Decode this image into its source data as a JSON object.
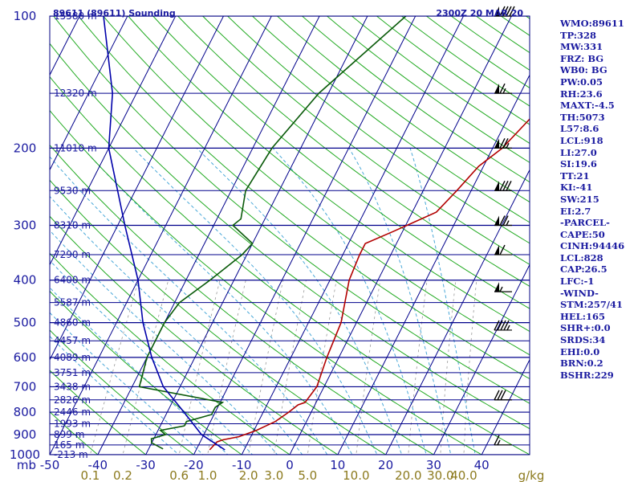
{
  "title_left": "89611 (89611) Sounding",
  "title_right": "2300Z 20 MAR 20",
  "colors": {
    "frame": "#000080",
    "isobar": "#00008b",
    "isotherm": "#00008b",
    "dry_adiabat": "#22aa22",
    "moist_adiabat": "#4aa8d8",
    "mixing_ratio": "#999999",
    "temperature": "#b20000",
    "dewpoint": "#0a5a0a",
    "parcel": "#0000aa",
    "wind": "#000000"
  },
  "stats": [
    "WMO:89611",
    "TP:328",
    "MW:331",
    "FRZ: BG",
    "WB0: BG",
    "PW:0.05",
    "RH:23.6",
    "MAXT:-4.5",
    "TH:5073",
    "L57:8.6",
    "LCL:918",
    "LI:27.0",
    "SI:19.6",
    "TT:21",
    "KI:-41",
    "SW:215",
    "EI:2.7",
    "-PARCEL-",
    "CAPE:50",
    "CINH:94446",
    "LCL:828",
    "CAP:26.5",
    "LFC:-1",
    "-WIND-",
    "STM:257/41",
    "HEL:165",
    "SHR+:0.0",
    "SRDS:34",
    "EHI:0.0",
    "BRN:0.2",
    "BSHR:229"
  ],
  "chart_data": {
    "type": "skew-t log-p sounding",
    "y_axis": {
      "label": "mb",
      "scale": "log",
      "range": [
        1000,
        100
      ],
      "ticks": [
        100,
        200,
        300,
        400,
        500,
        600,
        700,
        800,
        900,
        1000
      ]
    },
    "x_axis": {
      "label": "",
      "range": [
        -50,
        50
      ],
      "ticks": [
        -50,
        -40,
        -30,
        -20,
        -10,
        0,
        10,
        20,
        30,
        40
      ]
    },
    "mixing_ratio_axis": {
      "label": "g/kg",
      "ticks": [
        "0.1",
        "0.2",
        "0.6",
        "1.0",
        "2.0",
        "3.0",
        "5.0",
        "10.0",
        "20.0",
        "30.0",
        "40.0"
      ]
    },
    "height_labels": [
      {
        "p": 100,
        "label": "15580 m"
      },
      {
        "p": 150,
        "label": "12320 m"
      },
      {
        "p": 200,
        "label": "11010 m"
      },
      {
        "p": 250,
        "label": "9530 m"
      },
      {
        "p": 300,
        "label": "8310 m"
      },
      {
        "p": 350,
        "label": "7290 m"
      },
      {
        "p": 400,
        "label": "6400 m"
      },
      {
        "p": 450,
        "label": "5587 m"
      },
      {
        "p": 500,
        "label": "4860 m"
      },
      {
        "p": 550,
        "label": "4457 m"
      },
      {
        "p": 600,
        "label": "4089 m"
      },
      {
        "p": 650,
        "label": "3751 m"
      },
      {
        "p": 700,
        "label": "3438 m"
      },
      {
        "p": 750,
        "label": "2826 m"
      },
      {
        "p": 800,
        "label": "2446 m"
      },
      {
        "p": 850,
        "label": "1993 m"
      },
      {
        "p": 900,
        "label": "899 m"
      },
      {
        "p": 950,
        "label": "165 m"
      },
      {
        "p": 1000,
        "label": "-213 m"
      }
    ],
    "series": [
      {
        "role": "temperature",
        "points": [
          [
            975,
            -17.2
          ],
          [
            935,
            -16.5
          ],
          [
            925,
            -15.5
          ],
          [
            910,
            -12.5
          ],
          [
            880,
            -9.5
          ],
          [
            860,
            -8
          ],
          [
            840,
            -6.5
          ],
          [
            800,
            -4.7
          ],
          [
            770,
            -3.5
          ],
          [
            760,
            -2.3
          ],
          [
            700,
            -1.5
          ],
          [
            600,
            -2.5
          ],
          [
            500,
            -3.2
          ],
          [
            400,
            -6
          ],
          [
            350,
            -6.5
          ],
          [
            330,
            -6.5
          ],
          [
            310,
            -2
          ],
          [
            280,
            5
          ],
          [
            250,
            7
          ],
          [
            220,
            9
          ],
          [
            200,
            12
          ],
          [
            150,
            17
          ],
          [
            100,
            26
          ]
        ]
      },
      {
        "role": "dewpoint",
        "points": [
          [
            970,
            -27
          ],
          [
            940,
            -30
          ],
          [
            920,
            -30.5
          ],
          [
            900,
            -28
          ],
          [
            880,
            -29.5
          ],
          [
            860,
            -25
          ],
          [
            840,
            -25
          ],
          [
            810,
            -20.5
          ],
          [
            780,
            -20.5
          ],
          [
            760,
            -19.5
          ],
          [
            700,
            -38.5
          ],
          [
            600,
            -40
          ],
          [
            500,
            -40
          ],
          [
            450,
            -39
          ],
          [
            400,
            -35
          ],
          [
            350,
            -31
          ],
          [
            330,
            -30
          ],
          [
            300,
            -36
          ],
          [
            290,
            -35
          ],
          [
            250,
            -37
          ],
          [
            200,
            -36
          ],
          [
            150,
            -32
          ],
          [
            100,
            -22
          ]
        ]
      },
      {
        "role": "parcel",
        "points": [
          [
            975,
            -14
          ],
          [
            900,
            -20.5
          ],
          [
            800,
            -26.5
          ],
          [
            700,
            -33.5
          ],
          [
            600,
            -39
          ],
          [
            500,
            -44.5
          ],
          [
            400,
            -50
          ],
          [
            300,
            -58.5
          ],
          [
            200,
            -70
          ],
          [
            150,
            -75
          ],
          [
            100,
            -85
          ]
        ]
      }
    ],
    "wind_barbs": [
      {
        "p": 100,
        "dir": 270,
        "kt": 90
      },
      {
        "p": 150,
        "dir": 270,
        "kt": 65
      },
      {
        "p": 200,
        "dir": 270,
        "kt": 75
      },
      {
        "p": 250,
        "dir": 270,
        "kt": 80
      },
      {
        "p": 300,
        "dir": 270,
        "kt": 75
      },
      {
        "p": 350,
        "dir": 270,
        "kt": 60
      },
      {
        "p": 425,
        "dir": 270,
        "kt": 55
      },
      {
        "p": 520,
        "dir": 270,
        "kt": 45
      },
      {
        "p": 750,
        "dir": 270,
        "kt": 30
      },
      {
        "p": 950,
        "dir": 270,
        "kt": 15
      }
    ]
  }
}
